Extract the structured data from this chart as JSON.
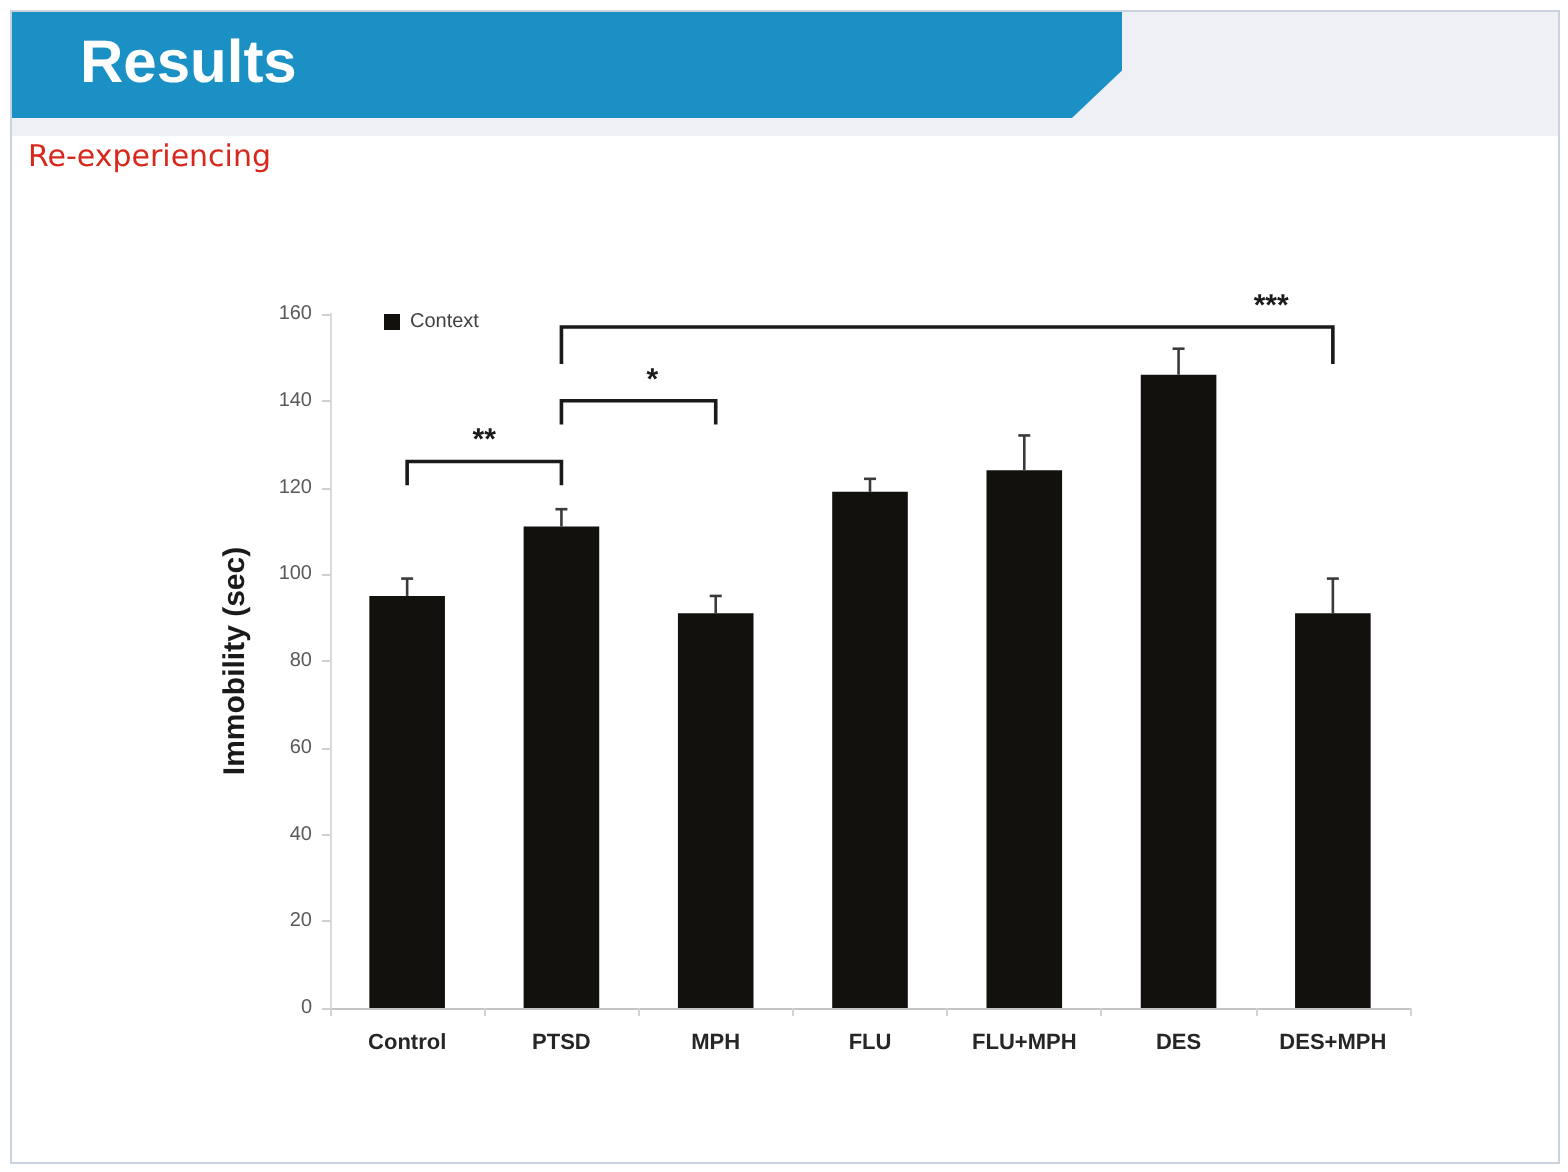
{
  "chart_data": {
    "type": "bar",
    "title": "Results",
    "subtitle": "Re-experiencing",
    "ylabel": "Immobility (sec)",
    "categories": [
      "Control",
      "PTSD",
      "MPH",
      "FLU",
      "FLU+MPH",
      "DES",
      "DES+MPH"
    ],
    "series": [
      {
        "name": "Context",
        "color": "#12110d",
        "values": [
          95,
          111,
          91,
          119,
          124,
          146,
          91
        ],
        "errors": [
          [
            95,
            99
          ],
          [
            111,
            115
          ],
          [
            91,
            95
          ],
          [
            119,
            122
          ],
          [
            124,
            132
          ],
          [
            146,
            152
          ],
          [
            91,
            99
          ]
        ]
      }
    ],
    "ylim": [
      0,
      160
    ],
    "yticks": [
      0,
      20,
      40,
      60,
      80,
      100,
      120,
      140,
      160
    ],
    "legend": "top left",
    "annotations": [
      "**",
      "*",
      "***"
    ]
  }
}
